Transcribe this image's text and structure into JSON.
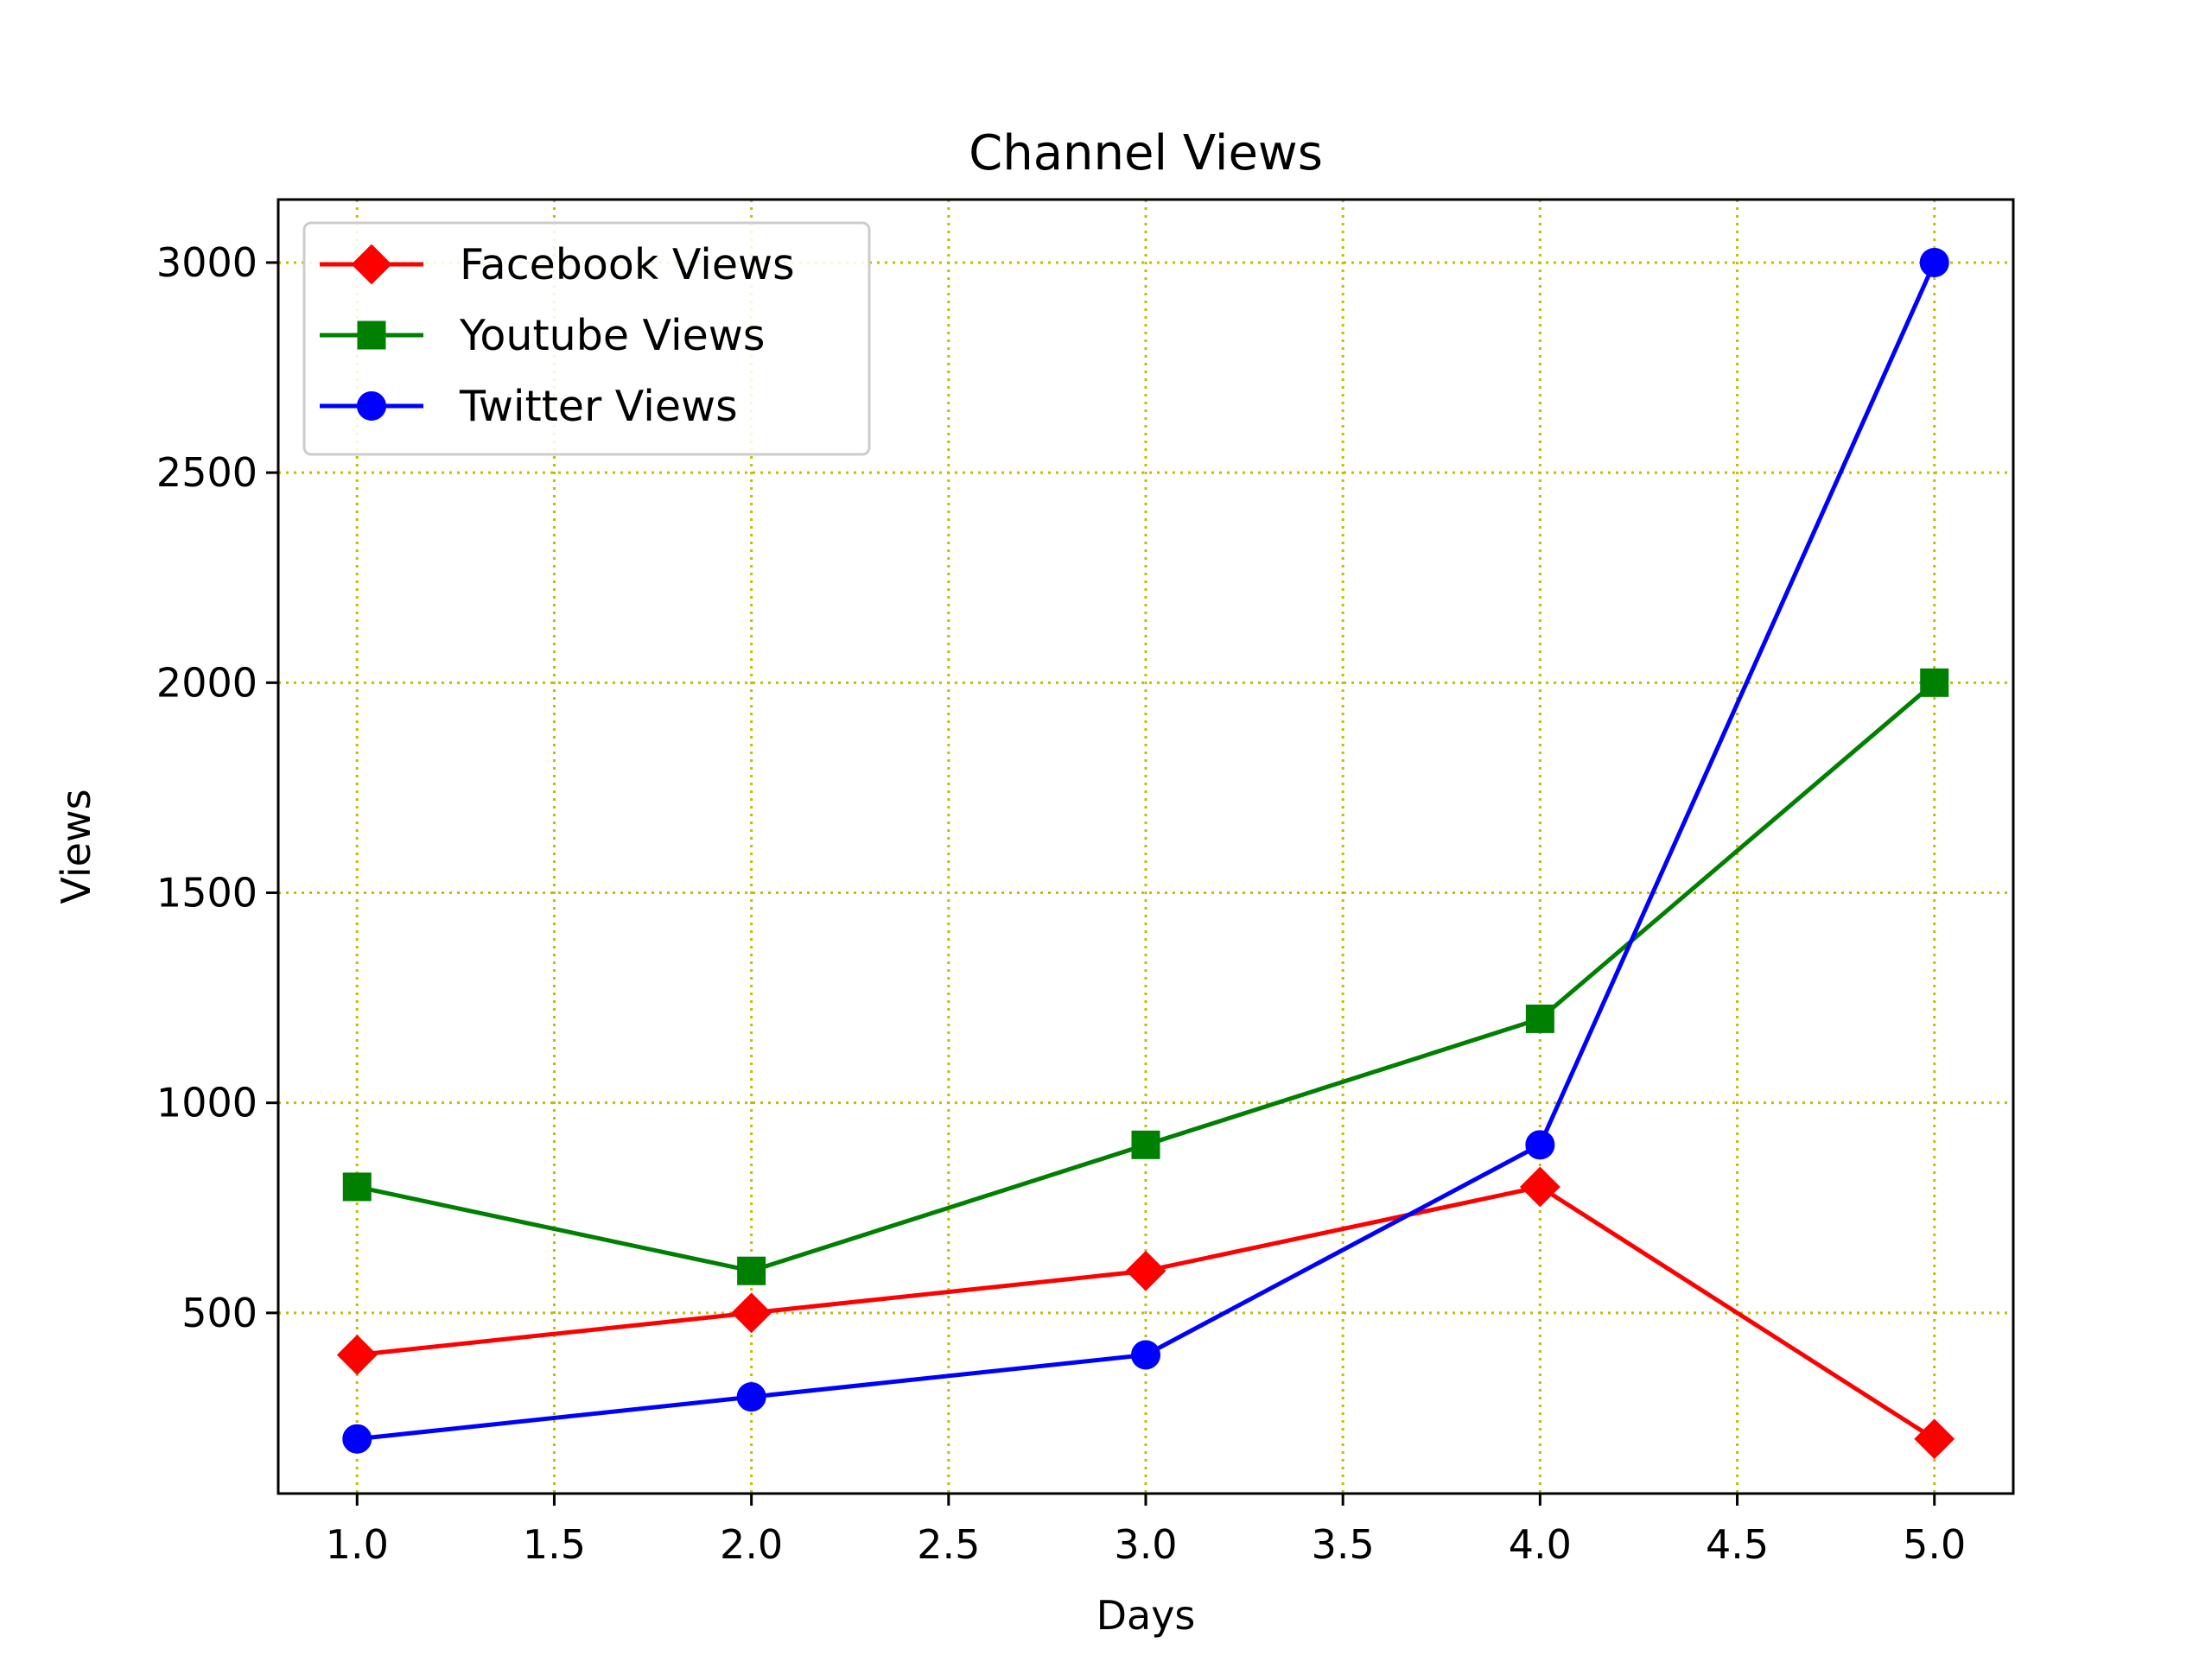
{
  "chart_data": {
    "type": "line",
    "title": "Channel Views",
    "xlabel": "Days",
    "ylabel": "Views",
    "xlim": [
      0.8,
      5.2
    ],
    "ylim": [
      70,
      3150
    ],
    "xticks": [
      1.0,
      1.5,
      2.0,
      2.5,
      3.0,
      3.5,
      4.0,
      4.5,
      5.0
    ],
    "xtick_labels": [
      "1.0",
      "1.5",
      "2.0",
      "2.5",
      "3.0",
      "3.5",
      "4.0",
      "4.5",
      "5.0"
    ],
    "yticks": [
      500,
      1000,
      1500,
      2000,
      2500,
      3000
    ],
    "ytick_labels": [
      "500",
      "1000",
      "1500",
      "2000",
      "2500",
      "3000"
    ],
    "grid": true,
    "grid_color": "#bfbf00",
    "legend_position": "top-left",
    "x": [
      1,
      2,
      3,
      4,
      5
    ],
    "series": [
      {
        "name": "Facebook Views",
        "values": [
          400,
          500,
          600,
          800,
          200
        ],
        "color": "#ff0000",
        "marker": "diamond"
      },
      {
        "name": "Youtube Views",
        "values": [
          800,
          600,
          900,
          1200,
          2000
        ],
        "color": "#008000",
        "marker": "square"
      },
      {
        "name": "Twitter Views",
        "values": [
          200,
          300,
          400,
          900,
          3000
        ],
        "color": "#0000ff",
        "marker": "circle"
      }
    ]
  }
}
